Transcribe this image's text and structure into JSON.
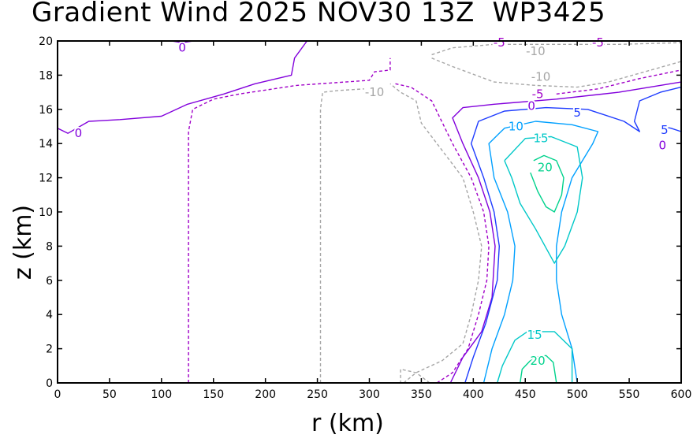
{
  "chart_data": {
    "type": "contour",
    "title": "Gradient Wind 2025 NOV30 13Z  WP3425",
    "xlabel": "r (km)",
    "ylabel": "z (km)",
    "xlim": [
      0,
      600
    ],
    "ylim": [
      0,
      20
    ],
    "x_ticks": [
      0,
      50,
      100,
      150,
      200,
      250,
      300,
      350,
      400,
      450,
      500,
      550,
      600
    ],
    "y_ticks": [
      0,
      2,
      4,
      6,
      8,
      10,
      12,
      14,
      16,
      18,
      20
    ],
    "contour_levels": [
      {
        "value": -10,
        "color": "#a6a6a6",
        "style": "dashed",
        "label": "-10"
      },
      {
        "value": -5,
        "color": "#a000c8",
        "style": "dashed",
        "label": "-5"
      },
      {
        "value": 0,
        "color": "#8200dc",
        "style": "solid",
        "label": "0"
      },
      {
        "value": 5,
        "color": "#1e3cff",
        "style": "solid",
        "label": "5"
      },
      {
        "value": 10,
        "color": "#00a0ff",
        "style": "solid",
        "label": "10"
      },
      {
        "value": 15,
        "color": "#00c8c8",
        "style": "solid",
        "label": "15"
      },
      {
        "value": 20,
        "color": "#00d28c",
        "style": "solid",
        "label": "20"
      }
    ],
    "contours": [
      {
        "level": 0,
        "points": [
          [
            0,
            14.9
          ],
          [
            10,
            14.6
          ],
          [
            30,
            15.3
          ],
          [
            60,
            15.4
          ],
          [
            100,
            15.6
          ],
          [
            125,
            16.3
          ],
          [
            160,
            16.9
          ],
          [
            190,
            17.5
          ],
          [
            225,
            18
          ],
          [
            228,
            19
          ],
          [
            240,
            20
          ]
        ]
      },
      {
        "level": 0,
        "points": [
          [
            110,
            20
          ],
          [
            120,
            19.9
          ],
          [
            130,
            20
          ]
        ]
      },
      {
        "level": -5,
        "points": [
          [
            126,
            0
          ],
          [
            126,
            6
          ],
          [
            126,
            12
          ],
          [
            126,
            14.7
          ],
          [
            130,
            16
          ],
          [
            150,
            16.6
          ],
          [
            175,
            16.9
          ],
          [
            230,
            17.4
          ],
          [
            300,
            17.7
          ],
          [
            305,
            18.2
          ],
          [
            320,
            18.3
          ],
          [
            320,
            19
          ]
        ]
      },
      {
        "level": -10,
        "points": [
          [
            253,
            0
          ],
          [
            253,
            6
          ],
          [
            253,
            12
          ],
          [
            253,
            16
          ],
          [
            255,
            17
          ],
          [
            270,
            17.1
          ],
          [
            295,
            17.2
          ]
        ]
      },
      {
        "level": -10,
        "points": [
          [
            358,
            0
          ],
          [
            345,
            0.6
          ],
          [
            330,
            0.8
          ],
          [
            330,
            0
          ]
        ]
      },
      {
        "level": -10,
        "points": [
          [
            333,
            0
          ],
          [
            345,
            0.6
          ],
          [
            370,
            1.3
          ],
          [
            390,
            2.3
          ],
          [
            398,
            4
          ],
          [
            405,
            6
          ],
          [
            408,
            8
          ],
          [
            400,
            10
          ],
          [
            390,
            12
          ],
          [
            365,
            14
          ],
          [
            350,
            15.2
          ],
          [
            345,
            16.5
          ],
          [
            330,
            17
          ],
          [
            320,
            17.5
          ]
        ]
      },
      {
        "level": -5,
        "points": [
          [
            365,
            0
          ],
          [
            380,
            0.6
          ],
          [
            395,
            2
          ],
          [
            405,
            4
          ],
          [
            413,
            6
          ],
          [
            415,
            8
          ],
          [
            410,
            10
          ],
          [
            398,
            12
          ],
          [
            380,
            14
          ],
          [
            368,
            15.5
          ],
          [
            360,
            16.5
          ],
          [
            340,
            17.3
          ],
          [
            325,
            17.5
          ]
        ]
      },
      {
        "level": 0,
        "points": [
          [
            378,
            0
          ],
          [
            390,
            1.5
          ],
          [
            408,
            3
          ],
          [
            418,
            5
          ],
          [
            421,
            8
          ],
          [
            416,
            10
          ],
          [
            405,
            12
          ],
          [
            390,
            14
          ],
          [
            380,
            15.5
          ],
          [
            390,
            16.1
          ],
          [
            420,
            16.3
          ],
          [
            480,
            16.6
          ],
          [
            540,
            17
          ],
          [
            600,
            17.6
          ]
        ]
      },
      {
        "level": -5,
        "points": [
          [
            480,
            16.9
          ],
          [
            520,
            17.2
          ],
          [
            560,
            17.8
          ],
          [
            600,
            18.3
          ]
        ]
      },
      {
        "level": -10,
        "points": [
          [
            360,
            19
          ],
          [
            380,
            18.5
          ],
          [
            420,
            17.6
          ],
          [
            460,
            17.4
          ],
          [
            500,
            17.3
          ],
          [
            530,
            17.6
          ],
          [
            565,
            18.2
          ],
          [
            600,
            18.8
          ]
        ]
      },
      {
        "level": -10,
        "points": [
          [
            360,
            19.2
          ],
          [
            380,
            19.6
          ],
          [
            420,
            19.8
          ],
          [
            480,
            19.8
          ],
          [
            540,
            19.8
          ],
          [
            600,
            19.9
          ]
        ]
      },
      {
        "level": 5,
        "points": [
          [
            392,
            0
          ],
          [
            400,
            1.5
          ],
          [
            412,
            3.5
          ],
          [
            423,
            6
          ],
          [
            425,
            8
          ],
          [
            420,
            10
          ],
          [
            410,
            12
          ],
          [
            398,
            14
          ],
          [
            405,
            15.3
          ],
          [
            430,
            15.9
          ],
          [
            470,
            16.1
          ],
          [
            510,
            16
          ],
          [
            545,
            15.3
          ],
          [
            560,
            14.7
          ],
          [
            555,
            15.3
          ],
          [
            560,
            16.5
          ],
          [
            580,
            17
          ],
          [
            600,
            17.3
          ]
        ]
      },
      {
        "level": 5,
        "points": [
          [
            600,
            14.7
          ],
          [
            590,
            14.9
          ],
          [
            582,
            15
          ]
        ]
      },
      {
        "level": 10,
        "points": [
          [
            410,
            0
          ],
          [
            418,
            2
          ],
          [
            430,
            4
          ],
          [
            438,
            6
          ],
          [
            440,
            8
          ],
          [
            433,
            10
          ],
          [
            420,
            12
          ],
          [
            415,
            14
          ],
          [
            430,
            14.9
          ],
          [
            460,
            15.3
          ],
          [
            495,
            15.1
          ],
          [
            520,
            14.7
          ],
          [
            515,
            14
          ],
          [
            495,
            12
          ],
          [
            485,
            10
          ],
          [
            480,
            8
          ],
          [
            480,
            6
          ],
          [
            485,
            4
          ],
          [
            495,
            2
          ],
          [
            500,
            0
          ]
        ]
      },
      {
        "level": 15,
        "points": [
          [
            423,
            0
          ],
          [
            428,
            1
          ],
          [
            440,
            2.5
          ],
          [
            452,
            3
          ],
          [
            468,
            3
          ],
          [
            478,
            3
          ],
          [
            495,
            2
          ],
          [
            495,
            0
          ]
        ]
      },
      {
        "level": 15,
        "points": [
          [
            430,
            13
          ],
          [
            437,
            12
          ],
          [
            445,
            10.5
          ],
          [
            460,
            9
          ],
          [
            478,
            7
          ],
          [
            488,
            8
          ],
          [
            500,
            10
          ],
          [
            505,
            12
          ],
          [
            500,
            13.8
          ],
          [
            475,
            14.4
          ],
          [
            450,
            14.3
          ],
          [
            430,
            13
          ]
        ]
      },
      {
        "level": 20,
        "points": [
          [
            445,
            0
          ],
          [
            447,
            0.8
          ],
          [
            458,
            1.5
          ],
          [
            470,
            1.6
          ],
          [
            477,
            1.2
          ],
          [
            480,
            0
          ]
        ]
      },
      {
        "level": 20,
        "points": [
          [
            455,
            12.3
          ],
          [
            462,
            11.2
          ],
          [
            470,
            10.3
          ],
          [
            478,
            10
          ],
          [
            485,
            11
          ],
          [
            487,
            12
          ],
          [
            480,
            13
          ],
          [
            468,
            13.3
          ],
          [
            458,
            13
          ]
        ]
      }
    ],
    "labels": [
      {
        "text": "0",
        "x": 20,
        "y": 14.6,
        "level": 0
      },
      {
        "text": "0",
        "x": 120,
        "y": 19.6,
        "level": 0
      },
      {
        "text": "-10",
        "x": 305,
        "y": 17.0,
        "level": -10
      },
      {
        "text": "-5",
        "x": 425,
        "y": 19.9,
        "level": -5
      },
      {
        "text": "-10",
        "x": 460,
        "y": 19.4,
        "level": -10
      },
      {
        "text": "-5",
        "x": 520,
        "y": 19.9,
        "level": -5
      },
      {
        "text": "-10",
        "x": 465,
        "y": 17.9,
        "level": -10
      },
      {
        "text": "-5",
        "x": 462,
        "y": 16.9,
        "level": -5
      },
      {
        "text": "0",
        "x": 456,
        "y": 16.2,
        "level": 0
      },
      {
        "text": "5",
        "x": 500,
        "y": 15.8,
        "level": 5
      },
      {
        "text": "10",
        "x": 441,
        "y": 15.0,
        "level": 10
      },
      {
        "text": "15",
        "x": 465,
        "y": 14.3,
        "level": 15
      },
      {
        "text": "20",
        "x": 469,
        "y": 12.6,
        "level": 20
      },
      {
        "text": "5",
        "x": 584,
        "y": 14.8,
        "level": 5
      },
      {
        "text": "0",
        "x": 582,
        "y": 13.9,
        "level": 0
      },
      {
        "text": "15",
        "x": 459,
        "y": 2.8,
        "level": 15
      },
      {
        "text": "20",
        "x": 462,
        "y": 1.3,
        "level": 20
      }
    ]
  }
}
